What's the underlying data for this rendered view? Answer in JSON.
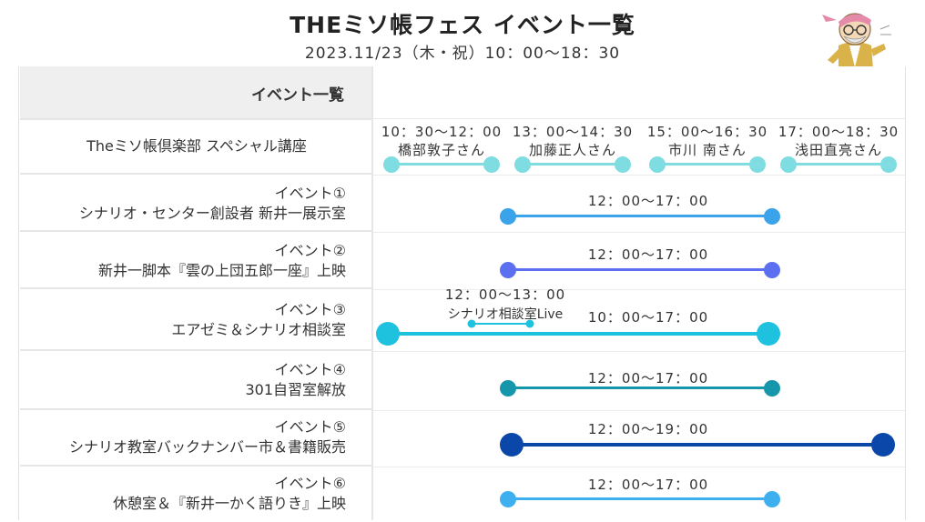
{
  "header": {
    "title": "THEミソ帳フェス イベント一覧",
    "subtitle": "2023.11/23（木・祝）10：00〜18：30"
  },
  "table": {
    "header_label": "イベント一覧"
  },
  "special": {
    "label": "Theミソ帳倶楽部 スペシャル講座",
    "color": "#7fdde2",
    "sessions": [
      {
        "time": "10：30〜12：00",
        "speaker": "橋部敦子さん"
      },
      {
        "time": "13：00〜14：30",
        "speaker": "加藤正人さん"
      },
      {
        "time": "15：00〜16：30",
        "speaker": "市川 南さん"
      },
      {
        "time": "17：00〜18：30",
        "speaker": "浅田直亮さん"
      }
    ]
  },
  "events": [
    {
      "num": "イベント①",
      "name": "シナリオ・センター創設者 新井一展示室",
      "time": "12：00〜17：00",
      "color": "#3aa3ea"
    },
    {
      "num": "イベント②",
      "name": "新井一脚本『雲の上団五郎一座』上映",
      "time": "12：00〜17：00",
      "color": "#5b6ff0"
    },
    {
      "num": "イベント③",
      "name": "エアゼミ＆シナリオ相談室",
      "time": "10：00〜17：00",
      "color": "#1ec2de",
      "sub_time": "12：00〜13：00",
      "sub_label": "シナリオ相談室Live"
    },
    {
      "num": "イベント④",
      "name": "301自習室解放",
      "time": "12：00〜17：00",
      "color": "#1696ab"
    },
    {
      "num": "イベント⑤",
      "name": "シナリオ教室バックナンバー市＆書籍販売",
      "time": "12：00〜19：00",
      "color": "#0a47a8"
    },
    {
      "num": "イベント⑥",
      "name": "休憩室＆『新井一かく語りき』上映",
      "time": "12：00〜17：00",
      "color": "#3fb0ef"
    }
  ]
}
